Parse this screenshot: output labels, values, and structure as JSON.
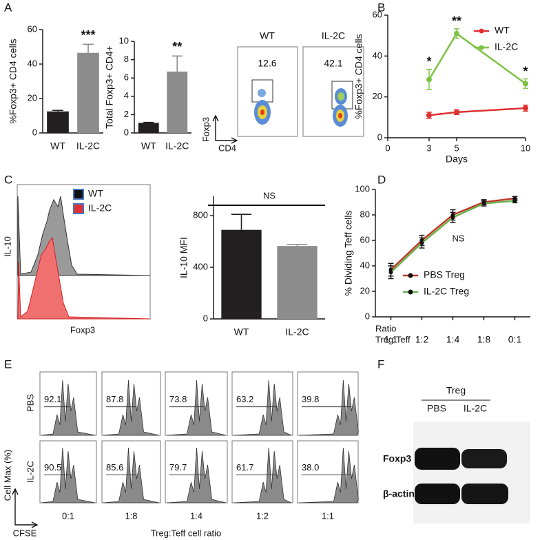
{
  "panel_labels": [
    "A",
    "B",
    "C",
    "D",
    "E",
    "F"
  ],
  "chart_data": [
    {
      "type": "bar",
      "y_label": "%Foxp3+ CD4 cells",
      "categories": [
        "WT",
        "IL-2C"
      ],
      "values": [
        12.5,
        46.5
      ],
      "errors": [
        0.6,
        5
      ],
      "colors": [
        "#231f20",
        "#8c8c8c"
      ],
      "ylim": [
        0,
        60
      ],
      "yticks": [
        0,
        20,
        40,
        60
      ],
      "annotations": [
        "***"
      ]
    },
    {
      "type": "bar",
      "y_label": "Total Foxp3+ CD4+",
      "categories": [
        "WT",
        "IL-2C"
      ],
      "values": [
        1.1,
        6.7
      ],
      "errors": [
        0.05,
        1.7
      ],
      "colors": [
        "#231f20",
        "#8c8c8c"
      ],
      "ylim": [
        0,
        10
      ],
      "yticks": [
        0,
        2,
        4,
        6,
        8,
        10
      ],
      "annotations": [
        "**"
      ]
    },
    {
      "type": "line",
      "y_label": "%Foxp3+ CD4 cells",
      "x_label": "Days",
      "x": [
        3,
        5,
        10
      ],
      "xlim": [
        0,
        10
      ],
      "xticks": [
        0,
        3,
        5,
        10
      ],
      "ylim": [
        0,
        60
      ],
      "yticks": [
        0,
        20,
        40,
        60
      ],
      "series": [
        {
          "name": "WT",
          "color": "#e03030",
          "values": [
            11,
            12.5,
            14.5
          ],
          "errors": [
            1.5,
            1.2,
            1.5
          ]
        },
        {
          "name": "IL-2C",
          "color": "#7dc242",
          "values": [
            28.5,
            51,
            26.5
          ],
          "errors": [
            5,
            2.3,
            2.3
          ]
        }
      ],
      "annotations": [
        "*",
        "**",
        "*"
      ],
      "legend": "upper right"
    },
    {
      "type": "bar",
      "y_label": "IL-10 MFI",
      "categories": [
        "WT",
        "IL-2C"
      ],
      "values": [
        690,
        565
      ],
      "errors": [
        120,
        12
      ],
      "colors": [
        "#231f20",
        "#8c8c8c"
      ],
      "ylim": [
        0,
        950
      ],
      "yticks": [
        0,
        400,
        800
      ],
      "annotations": [
        "NS"
      ]
    },
    {
      "type": "line",
      "y_label": "% Dividing Teff cells",
      "x_label": [
        "Ratio",
        "Treg:Teff"
      ],
      "categories": [
        "1:1",
        "1:2",
        "1:4",
        "1:8",
        "0:1"
      ],
      "ylim": [
        0,
        100
      ],
      "yticks": [
        0,
        20,
        40,
        60,
        80,
        100
      ],
      "series": [
        {
          "name": "PBS Treg",
          "color": "#c0392b",
          "values": [
            37,
            60,
            80,
            90,
            93
          ],
          "errors": [
            5,
            4,
            4,
            2,
            1.5
          ]
        },
        {
          "name": "IL-2C Treg",
          "color": "#6ab04c",
          "values": [
            35,
            58,
            78,
            89,
            91
          ],
          "errors": [
            5,
            4,
            4,
            2,
            1.5
          ]
        }
      ],
      "annotations": [
        "NS"
      ],
      "legend": "lower right"
    }
  ],
  "flow_a": {
    "samples": [
      "WT",
      "IL-2C"
    ],
    "gates": [
      "12.6",
      "42.1"
    ],
    "y_axis": "Foxp3",
    "x_axis": "CD4"
  },
  "histogram_c": {
    "legend": [
      "WT",
      "IL-2C"
    ],
    "y_axis": "IL-10",
    "x_axis": "Foxp3"
  },
  "panel_e": {
    "rows": [
      "PBS",
      "IL-2C"
    ],
    "columns": [
      "0:1",
      "1:8",
      "1:4",
      "1:2",
      "1:1"
    ],
    "gates": [
      [
        "92.1",
        "87.8",
        "73.8",
        "63.2",
        "39.8"
      ],
      [
        "90.5",
        "85.6",
        "79.7",
        "61.7",
        "38.0"
      ]
    ],
    "y_axis": "Cell Max (%)",
    "x_axis": "CFSE",
    "x_title": "Treg:Teff cell ratio"
  },
  "panel_f": {
    "group": "Treg",
    "lanes": [
      "PBS",
      "IL-2C"
    ],
    "bands": [
      "Foxp3",
      "β-actin"
    ]
  }
}
